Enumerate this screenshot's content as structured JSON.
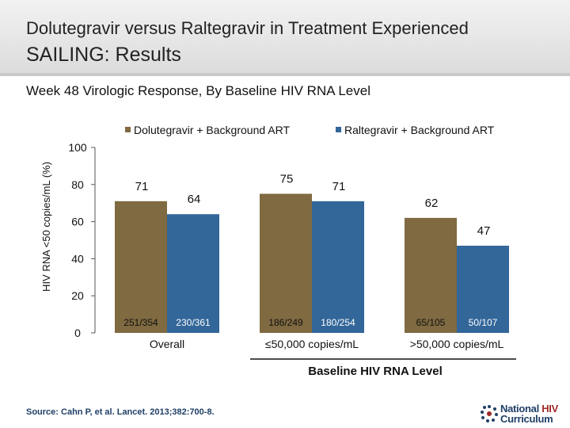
{
  "header": {
    "title_line1": "Dolutegravir versus Raltegravir in Treatment Experienced",
    "title_line2": "SAILING: Results"
  },
  "subtitle": "Week 48 Virologic Response, By Baseline HIV RNA Level",
  "chart_data": {
    "type": "bar",
    "ylabel": "HIV RNA <50 copies/mL (%)",
    "xlabel": "Baseline HIV RNA Level",
    "ylim": [
      0,
      100
    ],
    "yticks": [
      0,
      20,
      40,
      60,
      80,
      100
    ],
    "categories": [
      "Overall",
      "≤50,000 copies/mL",
      ">50,000 copies/mL"
    ],
    "series": [
      {
        "name": "Dolutegravir + Background ART",
        "color": "#7f6a41",
        "values": [
          71,
          75,
          62
        ],
        "ns": [
          "251/354",
          "186/249",
          "65/105"
        ]
      },
      {
        "name": "Raltegravir + Background ART",
        "color": "#336699",
        "values": [
          64,
          71,
          47
        ],
        "ns": [
          "230/361",
          "180/254",
          "50/107"
        ]
      }
    ],
    "legend_position": "top"
  },
  "footer": {
    "source": "Source: Cahn P, et al. Lancet. 2013;382:700-8.",
    "logo_line1_a": "National ",
    "logo_line1_b": "HIV",
    "logo_line2": "Curriculum"
  }
}
